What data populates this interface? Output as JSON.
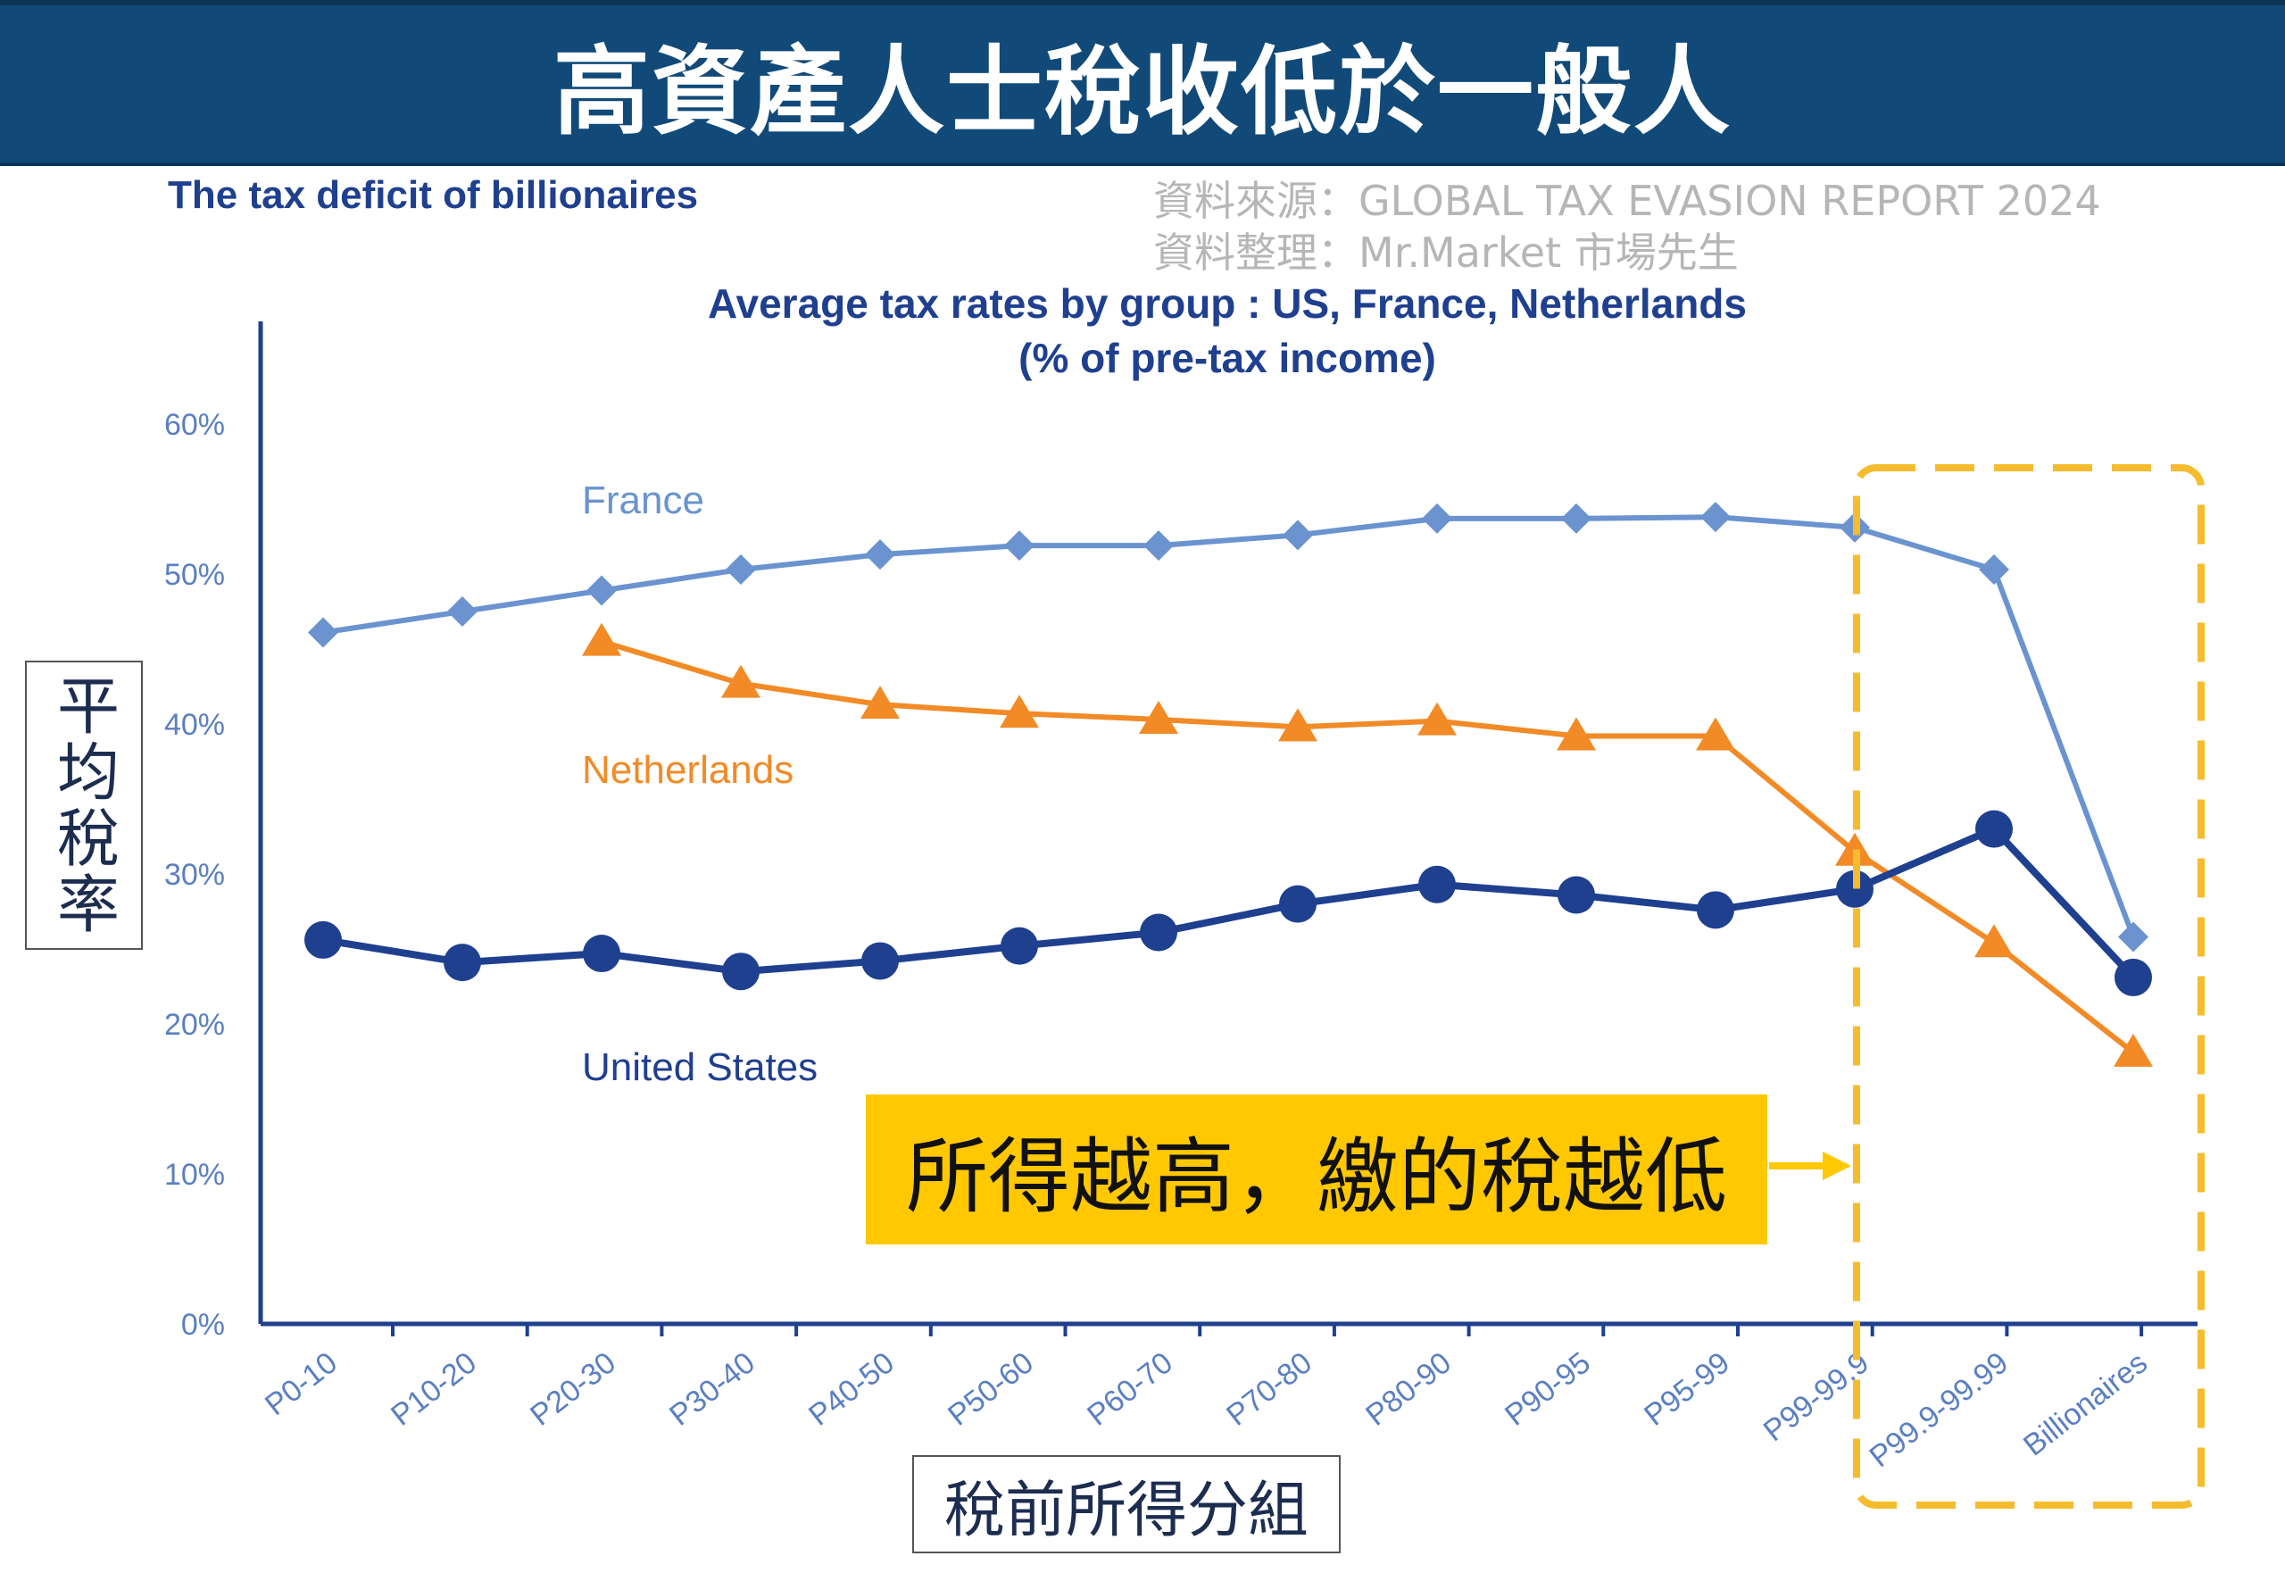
{
  "header": {
    "banner_title": "高資產人士稅收低於一般人"
  },
  "subtitle": "The tax deficit of billionaires",
  "source": {
    "line1": "資料來源：GLOBAL  TAX EVASION  REPORT 2024",
    "line2": "資料整理：Mr.Market 市場先生"
  },
  "callout": {
    "text": "所得越高，繳的稅越低"
  },
  "colors": {
    "banner": "#114a78",
    "france": "#6a93cf",
    "netherlands": "#f28a26",
    "united_states": "#1f3f8f",
    "highlight_box": "#f5bc2e",
    "callout_bg": "#ffc800"
  },
  "chart_data": {
    "type": "line",
    "title": "Average tax rates by group : US, France, Netherlands",
    "subtitle": "(% of pre-tax income)",
    "xlabel": "稅前所得分組",
    "ylabel": "平均稅率",
    "ylim": [
      0,
      60
    ],
    "yticks": [
      "0%",
      "10%",
      "20%",
      "30%",
      "40%",
      "50%",
      "60%"
    ],
    "categories": [
      "P0-10",
      "P10-20",
      "P20-30",
      "P30-40",
      "P40-50",
      "P50-60",
      "P60-70",
      "P70-80",
      "P80-90",
      "P90-95",
      "P95-99",
      "P99-99.9",
      "P99.9-99.99",
      "Billionaires"
    ],
    "series": [
      {
        "name": "France",
        "marker": "diamond",
        "values": [
          46.1,
          47.5,
          48.9,
          50.3,
          51.3,
          51.9,
          51.9,
          52.6,
          53.7,
          53.7,
          53.8,
          53.1,
          50.3,
          25.8
        ]
      },
      {
        "name": "Netherlands",
        "marker": "triangle",
        "values": [
          null,
          null,
          45.5,
          42.7,
          41.3,
          40.7,
          40.3,
          39.8,
          40.2,
          39.2,
          39.2,
          31.5,
          25.4,
          18.1
        ]
      },
      {
        "name": "United States",
        "marker": "circle",
        "values": [
          25.6,
          24.1,
          24.7,
          23.5,
          24.2,
          25.2,
          26.1,
          28.0,
          29.3,
          28.6,
          27.6,
          29.0,
          33.0,
          23.1
        ]
      }
    ],
    "highlight_categories": [
      "P99-99.9",
      "P99.9-99.99",
      "Billionaires"
    ],
    "grid": false,
    "legend": "inline-labels"
  }
}
